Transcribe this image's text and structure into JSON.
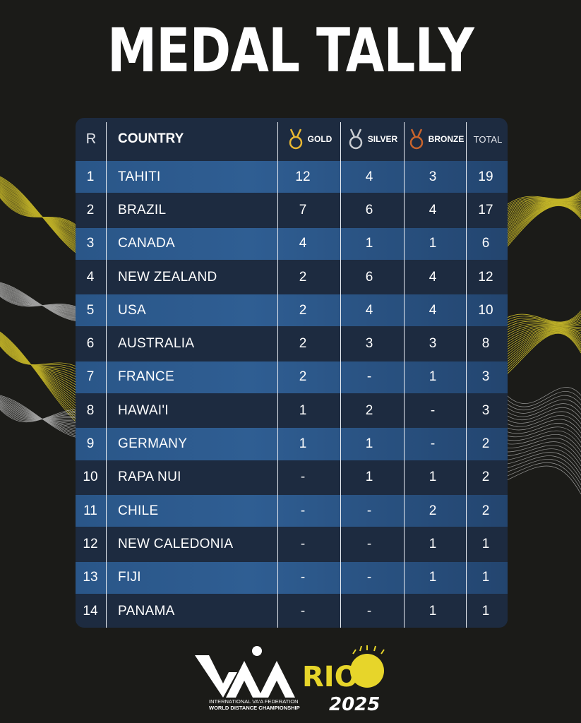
{
  "title": "MEDAL TALLY",
  "header": {
    "rank": "R",
    "country": "COUNTRY",
    "gold": "GOLD",
    "silver": "SILVER",
    "bronze": "BRONZE",
    "total": "TOTAL"
  },
  "rows": [
    {
      "rank": "1",
      "country": "TAHITI",
      "gold": "12",
      "silver": "4",
      "bronze": "3",
      "total": "19"
    },
    {
      "rank": "2",
      "country": "BRAZIL",
      "gold": "7",
      "silver": "6",
      "bronze": "4",
      "total": "17"
    },
    {
      "rank": "3",
      "country": "CANADA",
      "gold": "4",
      "silver": "1",
      "bronze": "1",
      "total": "6"
    },
    {
      "rank": "4",
      "country": "NEW ZEALAND",
      "gold": "2",
      "silver": "6",
      "bronze": "4",
      "total": "12"
    },
    {
      "rank": "5",
      "country": "USA",
      "gold": "2",
      "silver": "4",
      "bronze": "4",
      "total": "10"
    },
    {
      "rank": "6",
      "country": "AUSTRALIA",
      "gold": "2",
      "silver": "3",
      "bronze": "3",
      "total": "8"
    },
    {
      "rank": "7",
      "country": "FRANCE",
      "gold": "2",
      "silver": "-",
      "bronze": "1",
      "total": "3"
    },
    {
      "rank": "8",
      "country": "HAWAI'I",
      "gold": "1",
      "silver": "2",
      "bronze": "-",
      "total": "3"
    },
    {
      "rank": "9",
      "country": "GERMANY",
      "gold": "1",
      "silver": "1",
      "bronze": "-",
      "total": "2"
    },
    {
      "rank": "10",
      "country": "RAPA NUI",
      "gold": "-",
      "silver": "1",
      "bronze": "1",
      "total": "2"
    },
    {
      "rank": "11",
      "country": "CHILE",
      "gold": "-",
      "silver": "-",
      "bronze": "2",
      "total": "2"
    },
    {
      "rank": "12",
      "country": "NEW CALEDONIA",
      "gold": "-",
      "silver": "-",
      "bronze": "1",
      "total": "1"
    },
    {
      "rank": "13",
      "country": "FIJI",
      "gold": "-",
      "silver": "-",
      "bronze": "1",
      "total": "1"
    },
    {
      "rank": "14",
      "country": "PANAMA",
      "gold": "-",
      "silver": "-",
      "bronze": "1",
      "total": "1"
    }
  ],
  "logo": {
    "wordmark": "VAARIO",
    "year": "2025",
    "line1": "INTERNATIONAL VA'A FEDERATION",
    "line2": "WORLD DISTANCE CHAMPIONSHIP"
  },
  "icons": {
    "gold": "gold-medal-icon",
    "silver": "silver-medal-icon",
    "bronze": "bronze-medal-icon"
  },
  "colors": {
    "background": "#1b1b18",
    "table": "#1d2b40",
    "row_highlight": "#2a5688",
    "gold": "#e8b732",
    "silver": "#c9ccd1",
    "bronze": "#c8642c",
    "accent_yellow": "#e7d52a"
  }
}
